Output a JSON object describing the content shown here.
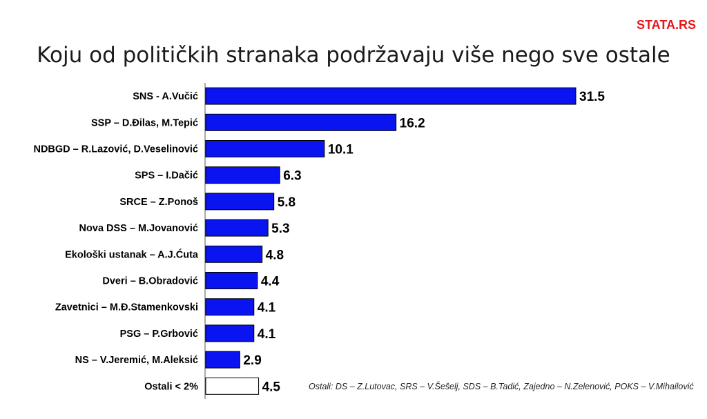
{
  "brand": "STATA.RS",
  "chart_data": {
    "type": "bar",
    "orientation": "horizontal",
    "title": "Koju od političkih stranaka podržavaju više nego sve ostale",
    "categories": [
      "SNS  - A.Vučić",
      "SSP – D.Đilas, M.Tepić",
      "NDBGD – R.Lazović, D.Veselinović",
      "SPS – I.Dačić",
      "SRCE – Z.Ponoš",
      "Nova DSS – M.Jovanović",
      "Ekološki ustanak – A.J.Ćuta",
      "Dveri – B.Obradović",
      "Zavetnici – M.Đ.Stamenkovski",
      "PSG – P.Grbović",
      "NS – V.Jeremić, M.Aleksić",
      "Ostali < 2%"
    ],
    "values": [
      31.5,
      16.2,
      10.1,
      6.3,
      5.8,
      5.3,
      4.8,
      4.4,
      4.1,
      4.1,
      2.9,
      4.5
    ],
    "value_labels": [
      "31.5",
      "16.2",
      "10.1",
      "6.3",
      "5.8",
      "5.3",
      "4.8",
      "4.4",
      "4.1",
      "4.1",
      "2.9",
      "4.5"
    ],
    "bar_color": "#0a14f0",
    "last_bar_color": "#ffffff",
    "xlim": [
      0,
      31.5
    ],
    "grid": false,
    "legend": "none",
    "note": "Ostali: DS – Z.Lutovac, SRS – V.Šešelj, SDS – B.Tadić, Zajedno – N.Zelenović, POKS – V.Mihailović"
  }
}
